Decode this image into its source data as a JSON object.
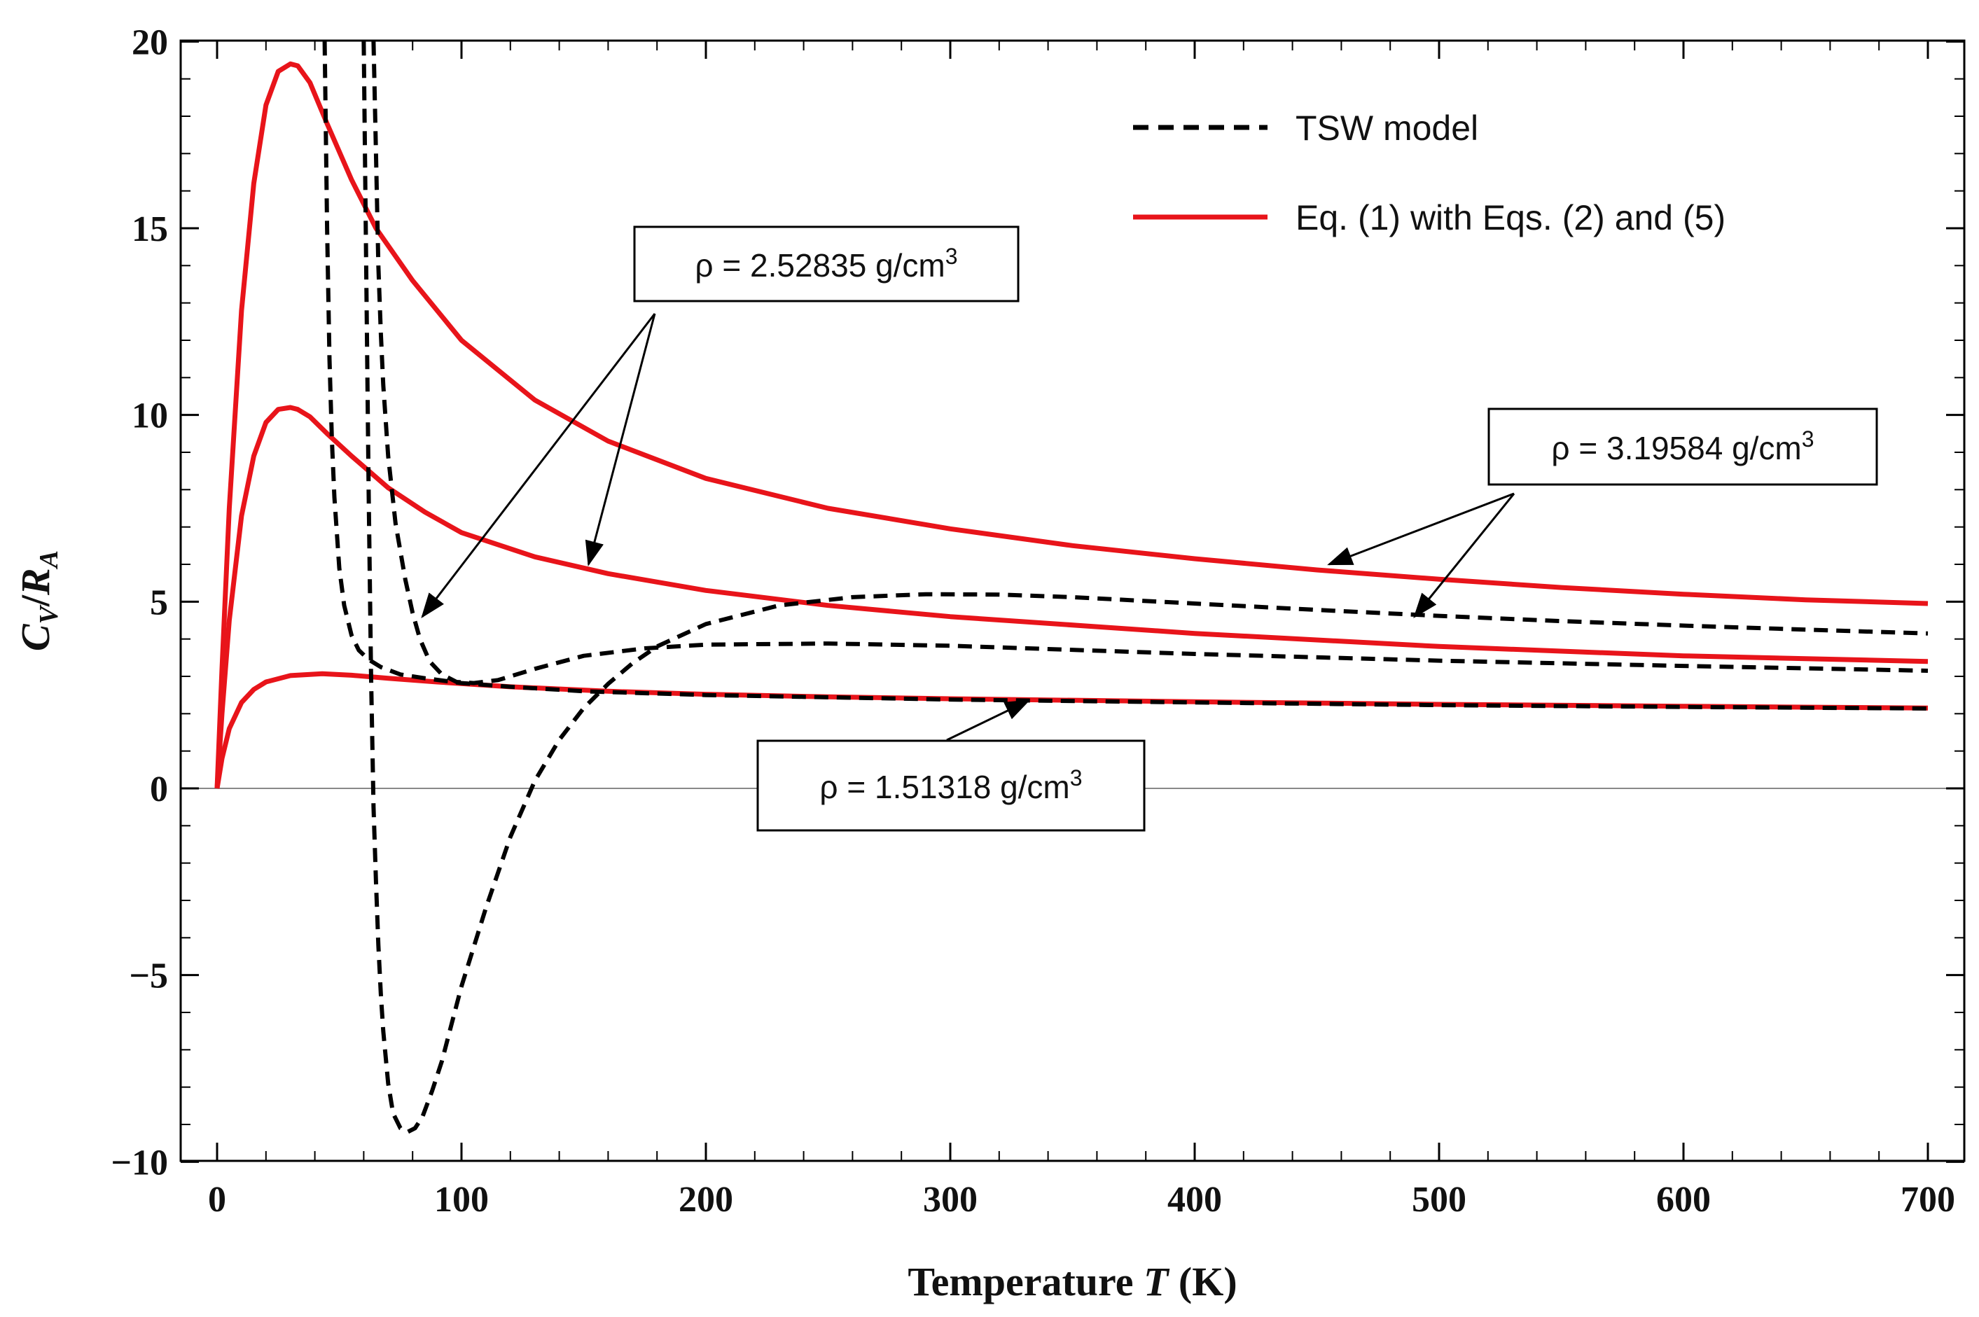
{
  "chart_data": {
    "type": "line",
    "title": "",
    "xlabel": {
      "prefix": "Temperature ",
      "italic": "T",
      "suffix": " (K)"
    },
    "ylabel": {
      "c": "C",
      "c_sub": "V",
      "slash": "/",
      "r": "R",
      "r_sub": "A"
    },
    "xlim": [
      0,
      700
    ],
    "ylim": [
      -10,
      20
    ],
    "x_ticks": [
      0,
      100,
      200,
      300,
      400,
      500,
      600,
      700
    ],
    "y_ticks": [
      20,
      15,
      10,
      5,
      0,
      -5,
      -10
    ],
    "y_tick_labels": [
      "20",
      "15",
      "10",
      "5",
      "0",
      "−5",
      "−10"
    ],
    "grid": false,
    "legend": {
      "position": "top-right",
      "entries": [
        {
          "label": "TSW model",
          "style": "dashed",
          "color": "#000000"
        },
        {
          "label": "Eq. (1) with Eqs. (2) and (5)",
          "style": "solid",
          "color": "#e8141a"
        }
      ]
    },
    "series": [
      {
        "name": "Eq. (1), ρ = 3.19584 g/cm3",
        "style": "solid",
        "color": "#e8141a",
        "x": [
          0,
          2,
          5,
          10,
          15,
          20,
          25,
          30,
          33,
          38,
          45,
          55,
          65,
          80,
          100,
          130,
          160,
          200,
          250,
          300,
          350,
          400,
          450,
          500,
          550,
          600,
          650,
          700
        ],
        "y": [
          0,
          3.2,
          7.5,
          12.8,
          16.2,
          18.3,
          19.2,
          19.4,
          19.35,
          18.9,
          17.8,
          16.3,
          15.0,
          13.6,
          12.0,
          10.4,
          9.3,
          8.3,
          7.5,
          6.95,
          6.5,
          6.15,
          5.85,
          5.6,
          5.38,
          5.2,
          5.05,
          4.95
        ]
      },
      {
        "name": "Eq. (1), ρ = 2.52835 g/cm3",
        "style": "solid",
        "color": "#e8141a",
        "x": [
          0,
          2,
          5,
          10,
          15,
          20,
          25,
          30,
          33,
          38,
          45,
          55,
          70,
          85,
          100,
          130,
          160,
          200,
          250,
          300,
          400,
          500,
          600,
          700
        ],
        "y": [
          0,
          2.0,
          4.5,
          7.3,
          8.9,
          9.8,
          10.15,
          10.2,
          10.15,
          9.95,
          9.5,
          8.9,
          8.05,
          7.4,
          6.85,
          6.2,
          5.75,
          5.3,
          4.9,
          4.6,
          4.15,
          3.8,
          3.55,
          3.4
        ]
      },
      {
        "name": "Eq. (1), ρ = 1.51318 g/cm3",
        "style": "solid",
        "color": "#e8141a",
        "x": [
          0,
          2,
          5,
          10,
          15,
          20,
          30,
          43,
          55,
          70,
          90,
          120,
          160,
          200,
          250,
          300,
          400,
          500,
          600,
          700
        ],
        "y": [
          0,
          0.8,
          1.6,
          2.3,
          2.65,
          2.85,
          3.02,
          3.07,
          3.03,
          2.95,
          2.85,
          2.72,
          2.6,
          2.52,
          2.45,
          2.4,
          2.32,
          2.25,
          2.2,
          2.15
        ]
      },
      {
        "name": "TSW model, ρ = 3.19584 g/cm3",
        "style": "dashed",
        "color": "#000000",
        "x": [
          60,
          61,
          62,
          63,
          64,
          65,
          66,
          67,
          68,
          70,
          72,
          75,
          78,
          81,
          84,
          88,
          92,
          96,
          100,
          110,
          120,
          130,
          140,
          150,
          160,
          170,
          180,
          200,
          230,
          260,
          290,
          320,
          350,
          400,
          450,
          500,
          550,
          600,
          650,
          700
        ],
        "y": [
          20,
          14,
          8,
          3,
          -0.5,
          -2.5,
          -4.2,
          -5.5,
          -6.5,
          -7.9,
          -8.7,
          -9.1,
          -9.2,
          -9.1,
          -8.8,
          -8.1,
          -7.3,
          -6.3,
          -5.3,
          -3.2,
          -1.3,
          0.2,
          1.3,
          2.15,
          2.8,
          3.35,
          3.8,
          4.4,
          4.9,
          5.12,
          5.2,
          5.19,
          5.12,
          4.95,
          4.78,
          4.62,
          4.48,
          4.36,
          4.25,
          4.15
        ]
      },
      {
        "name": "TSW model, ρ = 2.52835 g/cm3",
        "style": "dashed",
        "color": "#000000",
        "x": [
          64,
          65,
          66,
          67,
          68,
          70,
          73,
          77,
          80,
          83,
          87,
          92,
          98,
          105,
          115,
          130,
          150,
          175,
          200,
          250,
          300,
          400,
          500,
          600,
          700
        ],
        "y": [
          20,
          17,
          14,
          12.2,
          10.8,
          8.9,
          7.1,
          5.6,
          4.7,
          4.0,
          3.4,
          3.05,
          2.85,
          2.82,
          2.9,
          3.2,
          3.55,
          3.75,
          3.85,
          3.88,
          3.82,
          3.6,
          3.42,
          3.28,
          3.15
        ]
      },
      {
        "name": "TSW model, ρ = 1.51318 g/cm3",
        "style": "dashed",
        "color": "#000000",
        "x": [
          44,
          45,
          46,
          47,
          48,
          50,
          52,
          55,
          58,
          62,
          67,
          75,
          85,
          100,
          120,
          150,
          200,
          300,
          400,
          500,
          600,
          700
        ],
        "y": [
          20,
          15,
          11.5,
          9.3,
          7.8,
          5.9,
          4.9,
          4.1,
          3.7,
          3.45,
          3.25,
          3.05,
          2.95,
          2.82,
          2.72,
          2.6,
          2.5,
          2.38,
          2.3,
          2.23,
          2.18,
          2.14
        ]
      }
    ],
    "annotations": [
      {
        "name": "annotation-rho-2-52835",
        "text_prefix": "ρ = 2.52835 g/cm",
        "sup": "3",
        "arrows_to": [
          {
            "x": 84,
            "y": 4.6
          },
          {
            "x": 152,
            "y": 6.0
          }
        ]
      },
      {
        "name": "annotation-rho-3-19584",
        "text_prefix": "ρ = 3.19584 g/cm",
        "sup": "3",
        "arrows_to": [
          {
            "x": 455,
            "y": 6.0
          },
          {
            "x": 490,
            "y": 4.6
          }
        ]
      },
      {
        "name": "annotation-rho-1-51318",
        "text_prefix": "ρ = 1.51318 g/cm",
        "sup": "3",
        "arrows_to": [
          {
            "x": 332,
            "y": 2.35
          }
        ]
      }
    ]
  }
}
